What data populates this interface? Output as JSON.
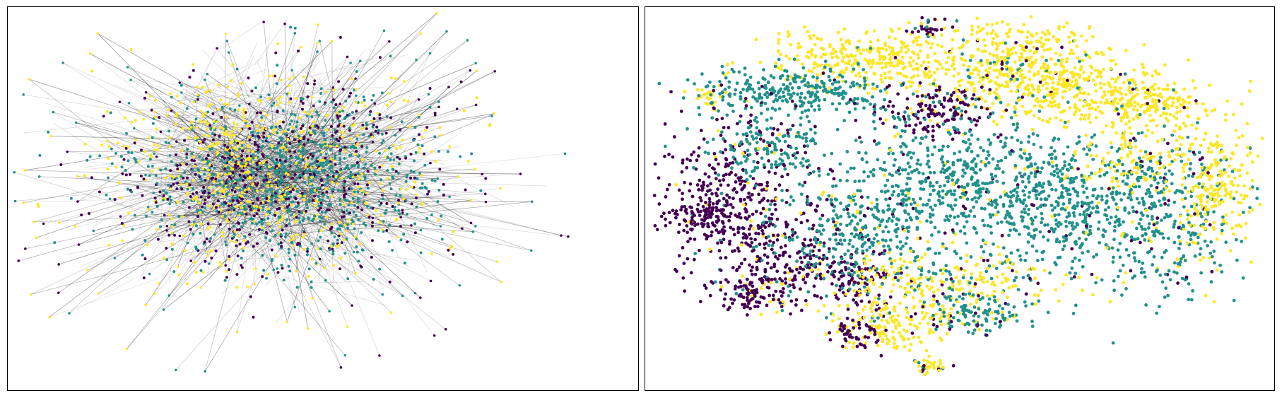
{
  "chart_data": [
    {
      "type": "scatter",
      "variant": "network-graph-embedding",
      "title": "",
      "xlabel": "",
      "ylabel": "",
      "axes": "off",
      "grid": false,
      "legend": "none",
      "edges": "drawn",
      "edge_color": "#000000",
      "series": [
        {
          "color": "#440154",
          "share": 0.32
        },
        {
          "color": "#21918c",
          "share": 0.36
        },
        {
          "color": "#fde725",
          "share": 0.32
        }
      ]
    },
    {
      "type": "scatter",
      "variant": "t-SNE-embedding",
      "title": "",
      "xlabel": "",
      "ylabel": "",
      "axes": "off",
      "grid": false,
      "legend": "none",
      "edges": "none",
      "series": [
        {
          "color": "#440154",
          "share": 0.24
        },
        {
          "color": "#21918c",
          "share": 0.44
        },
        {
          "color": "#fde725",
          "share": 0.32
        }
      ]
    }
  ]
}
